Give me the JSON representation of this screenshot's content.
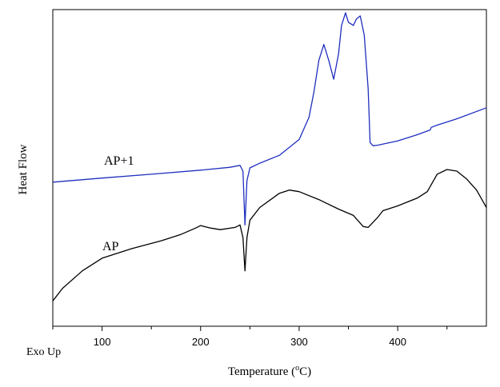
{
  "chart_data": {
    "type": "line",
    "title": "",
    "xlabel": "Temperature (",
    "xlabel_sup": "o",
    "xlabel_unit": "C)",
    "ylabel": "Heat Flow",
    "corner_note": "Exo Up",
    "xlim": [
      50,
      490
    ],
    "ylim": [
      0,
      100
    ],
    "x_ticks": [
      100,
      200,
      300,
      400
    ],
    "grid": false,
    "legend": "none",
    "series": [
      {
        "name": "AP+1",
        "color": "#1f2fbf",
        "x": [
          50,
          100,
          150,
          200,
          230,
          240,
          243,
          245,
          247,
          250,
          260,
          280,
          300,
          310,
          315,
          320,
          325,
          330,
          335,
          340,
          343,
          347,
          350,
          355,
          358,
          362,
          366,
          370,
          372,
          375,
          380,
          400,
          420,
          433,
          434,
          440,
          460,
          490
        ],
        "values": [
          45.5,
          46.8,
          48.0,
          49.3,
          50.2,
          50.8,
          49.0,
          32.0,
          46.0,
          50.0,
          51.5,
          54.0,
          59.0,
          66.0,
          74.0,
          84.0,
          89.0,
          84.0,
          78.0,
          86.0,
          95.0,
          99.0,
          96.0,
          95.0,
          97.0,
          98.0,
          92.0,
          75.0,
          58.0,
          57.0,
          57.2,
          58.5,
          60.5,
          62.0,
          62.8,
          63.5,
          65.5,
          69.0
        ]
      },
      {
        "name": "AP",
        "color": "#000000",
        "x": [
          50,
          60,
          80,
          100,
          130,
          160,
          180,
          195,
          200,
          210,
          220,
          235,
          240,
          243,
          245,
          247,
          250,
          260,
          280,
          290,
          300,
          320,
          340,
          355,
          365,
          370,
          380,
          385,
          390,
          400,
          420,
          430,
          440,
          450,
          460,
          470,
          480,
          490
        ],
        "values": [
          8.0,
          12.0,
          17.5,
          21.5,
          24.5,
          27.0,
          29.0,
          31.0,
          31.8,
          31.0,
          30.5,
          31.2,
          32.0,
          28.0,
          17.5,
          28.0,
          33.5,
          37.5,
          42.0,
          43.0,
          42.5,
          40.0,
          37.0,
          35.0,
          31.5,
          31.2,
          34.5,
          36.5,
          37.0,
          38.0,
          40.5,
          42.5,
          48.0,
          49.5,
          49.0,
          46.5,
          43.0,
          37.5
        ]
      }
    ]
  }
}
